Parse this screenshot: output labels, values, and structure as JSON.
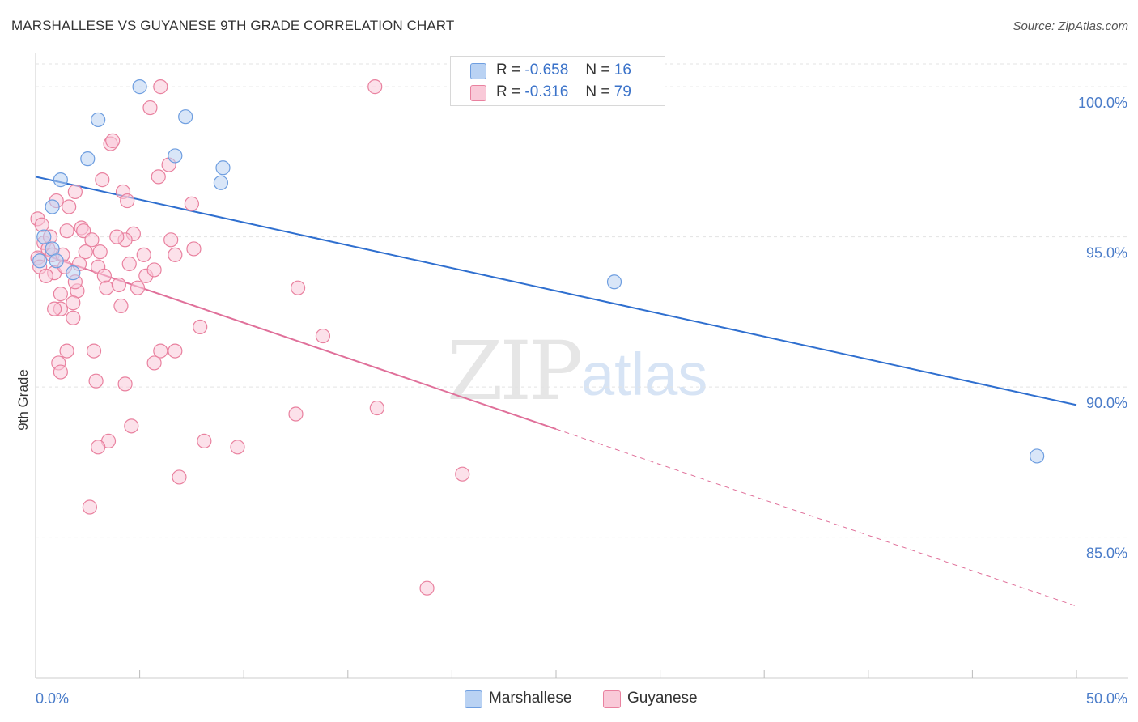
{
  "title": "MARSHALLESE VS GUYANESE 9TH GRADE CORRELATION CHART",
  "source": "Source: ZipAtlas.com",
  "watermark": {
    "zip": "ZIP",
    "atlas": "atlas"
  },
  "colors": {
    "blue_fill": "#b9d2f3",
    "blue_stroke": "#6e9ee0",
    "blue_line": "#2f6fcf",
    "pink_fill": "#f9c9d8",
    "pink_stroke": "#e9819f",
    "pink_line": "#e0709a",
    "grid": "#e3e3e3",
    "tick_text": "#4a7cc9"
  },
  "legend": {
    "rows": [
      {
        "r_label": "R =",
        "r_value": "-0.658",
        "n_label": "N =",
        "n_value": "16"
      },
      {
        "r_label": "R =",
        "r_value": "-0.316",
        "n_label": "N =",
        "n_value": "79"
      }
    ]
  },
  "bottom_legend": [
    "Marshallese",
    "Guyanese"
  ],
  "chart_data": {
    "type": "scatter",
    "title": "MARSHALLESE VS GUYANESE 9TH GRADE CORRELATION CHART",
    "xlabel": "",
    "ylabel": "9th Grade",
    "xlim": [
      0,
      50
    ],
    "ylim": [
      80.3,
      101
    ],
    "y_ticks": [
      85,
      90,
      95,
      100
    ],
    "y_tick_labels": [
      "85.0%",
      "90.0%",
      "95.0%",
      "100.0%"
    ],
    "x_tick_labels": [
      "0.0%",
      "50.0%"
    ],
    "grid": true,
    "legend_position": "top-center",
    "series": [
      {
        "name": "Marshallese",
        "R": -0.658,
        "N": 16,
        "trend": {
          "x0": 0,
          "y0": 97.0,
          "x1": 50,
          "y1": 89.4,
          "solid_until": 50
        },
        "points": [
          [
            5.0,
            100.0
          ],
          [
            3.0,
            98.9
          ],
          [
            7.2,
            99.0
          ],
          [
            2.5,
            97.6
          ],
          [
            6.7,
            97.7
          ],
          [
            9.0,
            97.3
          ],
          [
            1.2,
            96.9
          ],
          [
            8.9,
            96.8
          ],
          [
            0.8,
            96.0
          ],
          [
            0.4,
            95.0
          ],
          [
            0.8,
            94.6
          ],
          [
            0.2,
            94.2
          ],
          [
            1.0,
            94.2
          ],
          [
            1.8,
            93.8
          ],
          [
            27.8,
            93.5
          ],
          [
            48.1,
            87.7
          ]
        ]
      },
      {
        "name": "Guyanese",
        "R": -0.316,
        "N": 79,
        "trend": {
          "x0": 0,
          "y0": 94.5,
          "x1": 50,
          "y1": 82.7,
          "solid_until": 25
        },
        "points": [
          [
            0.1,
            95.6
          ],
          [
            0.1,
            94.3
          ],
          [
            0.2,
            94.0
          ],
          [
            0.4,
            94.8
          ],
          [
            0.6,
            94.6
          ],
          [
            0.7,
            95.0
          ],
          [
            0.8,
            94.4
          ],
          [
            0.9,
            93.8
          ],
          [
            1.2,
            93.1
          ],
          [
            1.3,
            94.4
          ],
          [
            1.5,
            95.2
          ],
          [
            1.6,
            96.0
          ],
          [
            1.0,
            96.2
          ],
          [
            1.9,
            96.5
          ],
          [
            2.2,
            95.3
          ],
          [
            2.3,
            95.2
          ],
          [
            2.4,
            94.5
          ],
          [
            2.7,
            94.9
          ],
          [
            3.0,
            94.0
          ],
          [
            3.1,
            94.5
          ],
          [
            3.3,
            93.7
          ],
          [
            3.4,
            93.3
          ],
          [
            3.6,
            98.1
          ],
          [
            3.7,
            98.2
          ],
          [
            3.2,
            96.9
          ],
          [
            4.2,
            96.5
          ],
          [
            4.4,
            96.2
          ],
          [
            4.0,
            93.4
          ],
          [
            4.5,
            94.1
          ],
          [
            4.7,
            95.1
          ],
          [
            4.9,
            93.3
          ],
          [
            5.3,
            93.7
          ],
          [
            5.5,
            99.3
          ],
          [
            5.9,
            97.0
          ],
          [
            6.0,
            100.0
          ],
          [
            6.4,
            97.4
          ],
          [
            6.5,
            94.9
          ],
          [
            6.7,
            94.4
          ],
          [
            7.5,
            96.1
          ],
          [
            4.3,
            94.9
          ],
          [
            3.9,
            95.0
          ],
          [
            5.7,
            93.9
          ],
          [
            5.2,
            94.4
          ],
          [
            2.0,
            93.2
          ],
          [
            1.9,
            93.5
          ],
          [
            1.2,
            92.6
          ],
          [
            0.9,
            92.6
          ],
          [
            1.8,
            92.8
          ],
          [
            1.8,
            92.3
          ],
          [
            1.5,
            91.2
          ],
          [
            2.8,
            91.2
          ],
          [
            1.1,
            90.8
          ],
          [
            1.2,
            90.5
          ],
          [
            2.9,
            90.2
          ],
          [
            4.3,
            90.1
          ],
          [
            4.1,
            92.7
          ],
          [
            7.9,
            92.0
          ],
          [
            6.0,
            91.2
          ],
          [
            5.7,
            90.8
          ],
          [
            6.7,
            91.2
          ],
          [
            12.6,
            93.3
          ],
          [
            13.8,
            91.7
          ],
          [
            3.5,
            88.2
          ],
          [
            3.0,
            88.0
          ],
          [
            4.6,
            88.7
          ],
          [
            8.1,
            88.2
          ],
          [
            9.7,
            88.0
          ],
          [
            6.9,
            87.0
          ],
          [
            2.6,
            86.0
          ],
          [
            12.5,
            89.1
          ],
          [
            16.4,
            89.3
          ],
          [
            20.5,
            87.1
          ],
          [
            18.8,
            83.3
          ],
          [
            16.3,
            100.0
          ],
          [
            7.6,
            94.6
          ],
          [
            0.3,
            95.4
          ],
          [
            0.5,
            93.7
          ],
          [
            2.1,
            94.1
          ],
          [
            1.4,
            94.0
          ]
        ]
      }
    ]
  }
}
